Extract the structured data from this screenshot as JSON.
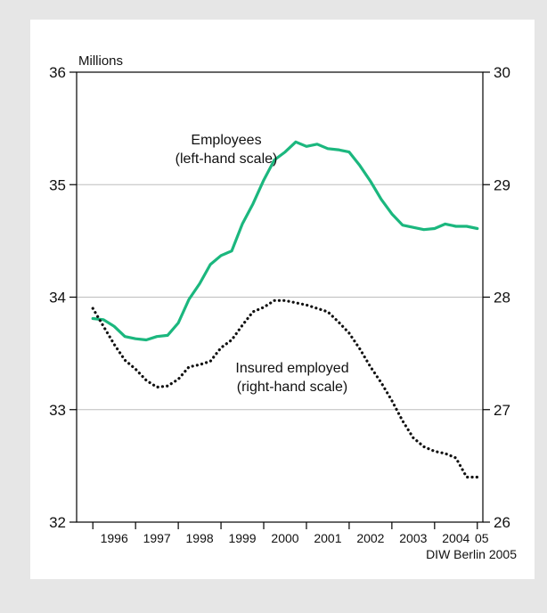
{
  "chart_data": {
    "type": "line",
    "unit_label": "Millions",
    "source": "DIW Berlin 2005",
    "x_ticks": [
      "1996",
      "1997",
      "1998",
      "1999",
      "2000",
      "2001",
      "2002",
      "2003",
      "2004",
      "05"
    ],
    "y_left": {
      "ylim": [
        32,
        36
      ],
      "ticks": [
        "32",
        "33",
        "34",
        "35",
        "36"
      ]
    },
    "y_right": {
      "ylim": [
        26,
        30
      ],
      "ticks": [
        "26",
        "27",
        "28",
        "29",
        "30"
      ]
    },
    "grid": true,
    "series": [
      {
        "name": "Employees",
        "label_lines": [
          "Employees",
          "(left-hand scale)"
        ],
        "axis": "left",
        "color": "#1bb77e",
        "style": "solid",
        "x": [
          1996.0,
          1996.25,
          1996.5,
          1996.75,
          1997.0,
          1997.25,
          1997.5,
          1997.75,
          1998.0,
          1998.25,
          1998.5,
          1998.75,
          1999.0,
          1999.25,
          1999.5,
          1999.75,
          2000.0,
          2000.25,
          2000.5,
          2000.75,
          2001.0,
          2001.25,
          2001.5,
          2001.75,
          2002.0,
          2002.25,
          2002.5,
          2002.75,
          2003.0,
          2003.25,
          2003.5,
          2003.75,
          2004.0,
          2004.25,
          2004.5,
          2004.75,
          2005.0
        ],
        "values": [
          33.81,
          33.8,
          33.74,
          33.65,
          33.63,
          33.62,
          33.65,
          33.66,
          33.77,
          33.98,
          34.12,
          34.29,
          34.37,
          34.41,
          34.65,
          34.83,
          35.04,
          35.22,
          35.29,
          35.38,
          35.34,
          35.36,
          35.32,
          35.31,
          35.29,
          35.17,
          35.03,
          34.87,
          34.74,
          34.64,
          34.62,
          34.6,
          34.61,
          34.65,
          34.63,
          34.63,
          34.61
        ]
      },
      {
        "name": "Insured employed",
        "label_lines": [
          "Insured employed",
          "(right-hand scale)"
        ],
        "axis": "right",
        "color": "#111111",
        "style": "dotted",
        "x": [
          1996.0,
          1996.25,
          1996.5,
          1996.75,
          1997.0,
          1997.25,
          1997.5,
          1997.75,
          1998.0,
          1998.25,
          1998.5,
          1998.75,
          1999.0,
          1999.25,
          1999.5,
          1999.75,
          2000.0,
          2000.25,
          2000.5,
          2000.75,
          2001.0,
          2001.25,
          2001.5,
          2001.75,
          2002.0,
          2002.25,
          2002.5,
          2002.75,
          2003.0,
          2003.25,
          2003.5,
          2003.75,
          2004.0,
          2004.25,
          2004.5,
          2004.75,
          2005.0
        ],
        "values": [
          27.9,
          27.74,
          27.58,
          27.44,
          27.36,
          27.26,
          27.2,
          27.21,
          27.27,
          27.38,
          27.4,
          27.43,
          27.55,
          27.62,
          27.75,
          27.87,
          27.91,
          27.97,
          27.97,
          27.95,
          27.93,
          27.9,
          27.87,
          27.78,
          27.68,
          27.54,
          27.38,
          27.24,
          27.08,
          26.9,
          26.75,
          26.67,
          26.63,
          26.61,
          26.57,
          26.4,
          26.4
        ]
      }
    ]
  }
}
